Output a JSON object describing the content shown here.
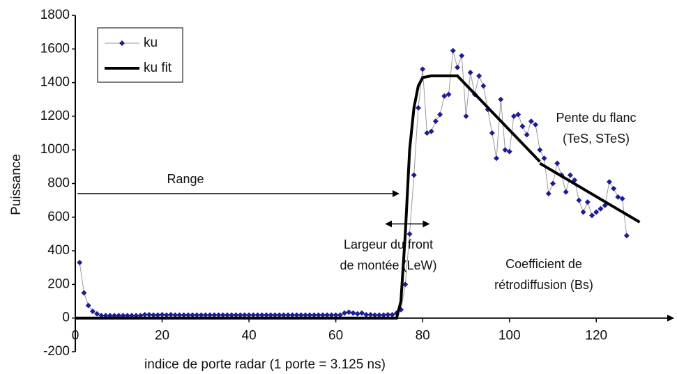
{
  "chart_data": {
    "type": "line",
    "y_label": "Puissance",
    "x_label": "indice de porte radar (1 porte = 3.125 ns)",
    "xlim": [
      0,
      136.5
    ],
    "ylim": [
      -200,
      1800
    ],
    "xticks": [
      0,
      20,
      40,
      60,
      80,
      100,
      120
    ],
    "yticks": [
      -200,
      0,
      200,
      400,
      600,
      800,
      1000,
      1200,
      1400,
      1600,
      1800
    ],
    "legend": "upper left",
    "series": [
      {
        "name": "ku",
        "color": "#1c1c94",
        "markers": true,
        "x": [
          1,
          2,
          3,
          4,
          5,
          6,
          7,
          8,
          9,
          10,
          11,
          12,
          13,
          14,
          15,
          16,
          17,
          18,
          19,
          20,
          21,
          22,
          23,
          24,
          25,
          26,
          27,
          28,
          29,
          30,
          31,
          32,
          33,
          34,
          35,
          36,
          37,
          38,
          39,
          40,
          41,
          42,
          43,
          44,
          45,
          46,
          47,
          48,
          49,
          50,
          51,
          52,
          53,
          54,
          55,
          56,
          57,
          58,
          59,
          60,
          61,
          62,
          63,
          64,
          65,
          66,
          67,
          68,
          69,
          70,
          71,
          72,
          73,
          74,
          75,
          76,
          77,
          78,
          79,
          80,
          81,
          82,
          83,
          84,
          85,
          86,
          87,
          88,
          89,
          90,
          91,
          92,
          93,
          94,
          95,
          96,
          97,
          98,
          99,
          100,
          101,
          102,
          103,
          104,
          105,
          106,
          107,
          108,
          109,
          110,
          111,
          112,
          113,
          114,
          115,
          116,
          117,
          118,
          119,
          120,
          121,
          122,
          123,
          124,
          125,
          126,
          127
        ],
        "values": [
          330,
          150,
          75,
          40,
          25,
          15,
          15,
          15,
          15,
          15,
          15,
          15,
          15,
          15,
          15,
          20,
          20,
          18,
          18,
          20,
          18,
          20,
          18,
          18,
          18,
          18,
          18,
          18,
          18,
          18,
          18,
          18,
          18,
          18,
          18,
          18,
          18,
          18,
          18,
          18,
          18,
          18,
          18,
          18,
          18,
          18,
          18,
          18,
          18,
          18,
          18,
          18,
          18,
          18,
          18,
          18,
          18,
          18,
          18,
          18,
          18,
          30,
          35,
          30,
          25,
          30,
          20,
          20,
          18,
          18,
          18,
          20,
          20,
          30,
          50,
          200,
          500,
          850,
          1250,
          1480,
          1100,
          1110,
          1170,
          1210,
          1320,
          1330,
          1590,
          1490,
          1560,
          1200,
          1460,
          1330,
          1440,
          1380,
          1240,
          1100,
          950,
          1300,
          1000,
          990,
          1200,
          1210,
          1140,
          1090,
          1170,
          1150,
          1000,
          950,
          740,
          800,
          920,
          850,
          750,
          850,
          820,
          700,
          630,
          690,
          610,
          630,
          650,
          670,
          810,
          770,
          720,
          710,
          490
        ]
      },
      {
        "name": "ku fit",
        "color": "#000000",
        "markers": false,
        "x": [
          0,
          74,
          75,
          76,
          77,
          78,
          79,
          80,
          82,
          88,
          107,
          107.5,
          107,
          130
        ],
        "values": [
          0,
          0,
          100,
          500,
          1000,
          1250,
          1380,
          1430,
          1440,
          1440,
          930,
          null,
          920,
          570
        ]
      }
    ],
    "annotations": [
      {
        "lines": [
          "Range"
        ],
        "arrow": [
          0.5,
          74.5,
          740
        ]
      },
      {
        "lines": [
          "Largeur du front",
          "de montée (LeW)"
        ],
        "arrow": [
          71.5,
          81.5,
          560
        ]
      },
      {
        "lines": [
          "Pente du flanc",
          "(TeS, STeS)"
        ]
      },
      {
        "lines": [
          "Coefficient de",
          "rétrodiffusion (Bs)"
        ]
      }
    ]
  }
}
